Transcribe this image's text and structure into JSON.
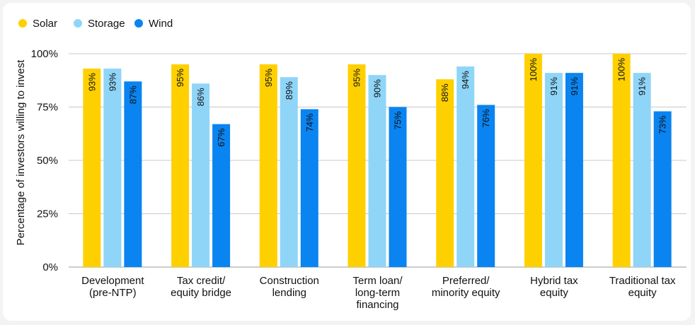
{
  "chart_data": {
    "type": "bar",
    "ylabel": "Percentage of investors willing to invest",
    "ylim": [
      0,
      100
    ],
    "yticks": [
      {
        "value": 0,
        "label": "0%"
      },
      {
        "value": 25,
        "label": "25%"
      },
      {
        "value": 50,
        "label": "50%"
      },
      {
        "value": 75,
        "label": "75%"
      },
      {
        "value": 100,
        "label": "100%"
      }
    ],
    "grid": true,
    "legend_position": "top-left",
    "categories": [
      [
        "Development",
        "(pre-NTP)"
      ],
      [
        "Tax credit/",
        "equity bridge"
      ],
      [
        "Construction",
        "lending"
      ],
      [
        "Term loan/",
        "long-term",
        "financing"
      ],
      [
        "Preferred/",
        "minority equity"
      ],
      [
        "Hybrid tax",
        "equity"
      ],
      [
        "Traditional tax",
        "equity"
      ]
    ],
    "series": [
      {
        "name": "Solar",
        "color": "#FFD000",
        "values": [
          93,
          95,
          95,
          95,
          88,
          100,
          100
        ],
        "labels": [
          "93%",
          "95%",
          "95%",
          "95%",
          "88%",
          "100%",
          "100%"
        ]
      },
      {
        "name": "Storage",
        "color": "#8FD5F8",
        "values": [
          93,
          86,
          89,
          90,
          94,
          91,
          91
        ],
        "labels": [
          "93%",
          "86%",
          "89%",
          "90%",
          "94%",
          "91%",
          "91%"
        ]
      },
      {
        "name": "Wind",
        "color": "#0A84F0",
        "values": [
          87,
          67,
          74,
          75,
          76,
          91,
          73
        ],
        "labels": [
          "87%",
          "67%",
          "74%",
          "75%",
          "76%",
          "91%",
          "73%"
        ]
      }
    ]
  }
}
